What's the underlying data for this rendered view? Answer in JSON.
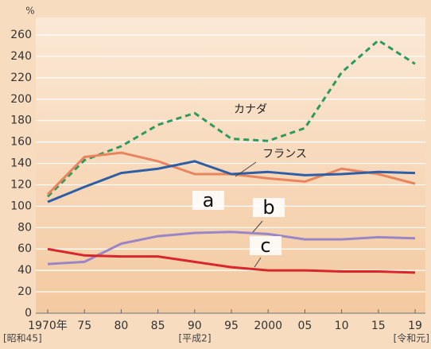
{
  "chart_data": {
    "type": "line",
    "y_label": "%",
    "categories": [
      "1970年",
      "75",
      "80",
      "85",
      "90",
      "95",
      "2000",
      "05",
      "10",
      "15",
      "19"
    ],
    "x_sublabels": [
      "[昭和45]",
      "[平成2]",
      "[令和元]"
    ],
    "ylim": [
      0,
      260
    ],
    "yticks": [
      0,
      20,
      40,
      60,
      80,
      100,
      120,
      140,
      160,
      180,
      200,
      220,
      240,
      260
    ],
    "grid": true,
    "series": [
      {
        "name": "カナダ",
        "color": "#2e9a5c",
        "dashed": true,
        "values": [
          109,
          143,
          156,
          176,
          187,
          163,
          161,
          173,
          225,
          255,
          233
        ]
      },
      {
        "name": "フランス",
        "color": "#e8845e",
        "values": [
          111,
          146,
          150,
          142,
          130,
          130,
          126,
          123,
          135,
          130,
          121
        ]
      },
      {
        "name": "a",
        "color": "#2d5fa6",
        "values": [
          104,
          118,
          131,
          135,
          142,
          130,
          132,
          129,
          130,
          132,
          131
        ]
      },
      {
        "name": "b",
        "color": "#9a86c6",
        "values": [
          46,
          48,
          65,
          72,
          75,
          76,
          74,
          69,
          69,
          71,
          70
        ]
      },
      {
        "name": "c",
        "color": "#d8262c",
        "values": [
          60,
          54,
          53,
          53,
          48,
          43,
          40,
          40,
          39,
          39,
          38
        ]
      }
    ]
  }
}
